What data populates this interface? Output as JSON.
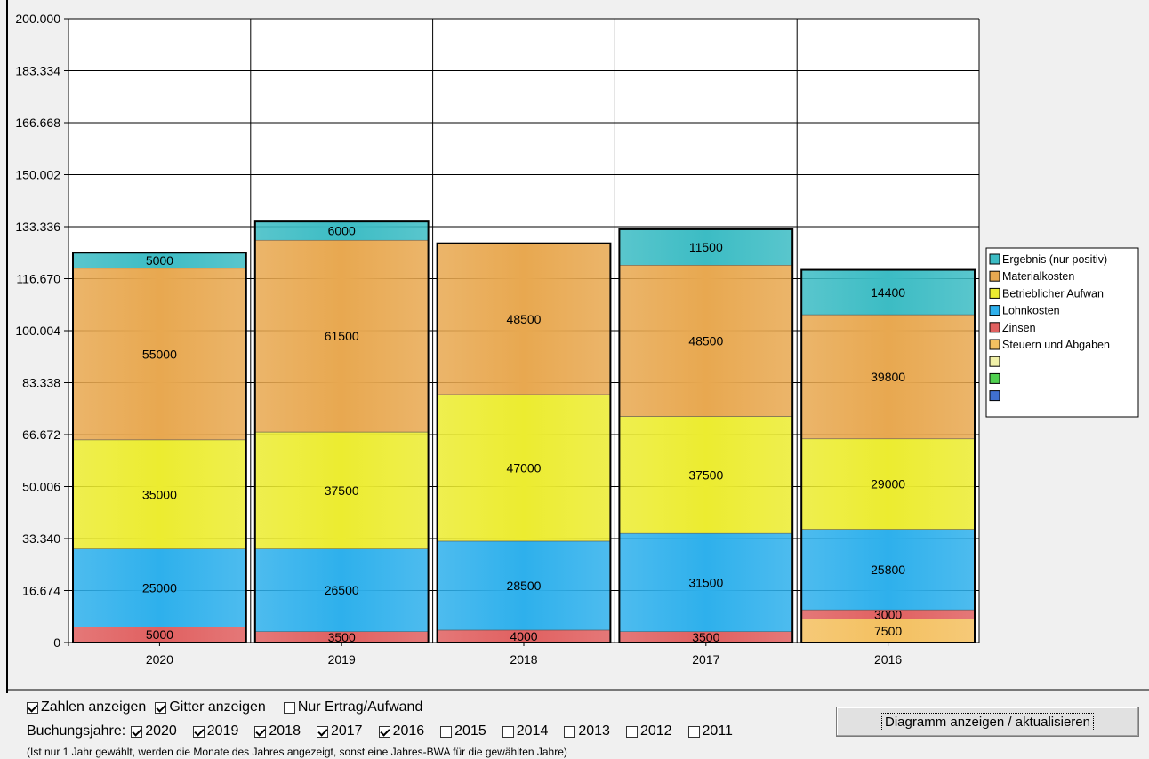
{
  "chart_data": {
    "type": "bar",
    "stacked": true,
    "categories": [
      "2020",
      "2019",
      "2018",
      "2017",
      "2016"
    ],
    "y_ticks": [
      "0",
      "16.674",
      "33.340",
      "50.006",
      "66.672",
      "83.338",
      "100.004",
      "116.670",
      "133.336",
      "150.002",
      "166.668",
      "183.334",
      "200.000"
    ],
    "ylim": [
      0,
      200000
    ],
    "grid": true,
    "legend_position": "right",
    "series": [
      {
        "name": "Steuern und Abgaben",
        "color": "#f4c060",
        "values": [
          0,
          0,
          0,
          0,
          7500
        ],
        "labels": [
          "",
          "",
          "",
          "",
          "7500"
        ]
      },
      {
        "name": "Zinsen",
        "color": "#e06060",
        "values": [
          5000,
          3500,
          4000,
          3500,
          3000
        ],
        "labels": [
          "5000",
          "3500",
          "4000",
          "3500",
          "3000"
        ]
      },
      {
        "name": "Lohnkosten",
        "color": "#2eb0ec",
        "values": [
          25000,
          26500,
          28500,
          31500,
          25800
        ],
        "labels": [
          "25000",
          "26500",
          "28500",
          "31500",
          "25800"
        ]
      },
      {
        "name": "Betrieblicher Aufwan",
        "color": "#ecec30",
        "values": [
          35000,
          37500,
          47000,
          37500,
          29000
        ],
        "labels": [
          "35000",
          "37500",
          "47000",
          "37500",
          "29000"
        ]
      },
      {
        "name": "Materialkosten",
        "color": "#e8a850",
        "values": [
          55000,
          61500,
          48500,
          48500,
          39800
        ],
        "labels": [
          "55000",
          "61500",
          "48500",
          "48500",
          "39800"
        ]
      },
      {
        "name": "Ergebnis (nur positiv)",
        "color": "#3cbcc4",
        "values": [
          5000,
          6000,
          0,
          11500,
          14400
        ],
        "labels": [
          "5000",
          "6000",
          "",
          "11500",
          "14400"
        ]
      }
    ],
    "legend": [
      {
        "name": "Ergebnis (nur positiv)",
        "color": "#3cbcc4"
      },
      {
        "name": "Materialkosten",
        "color": "#e8a850"
      },
      {
        "name": "Betrieblicher Aufwan",
        "color": "#ecec30"
      },
      {
        "name": "Lohnkosten",
        "color": "#2eb0ec"
      },
      {
        "name": "Zinsen",
        "color": "#e06060"
      },
      {
        "name": "Steuern und Abgaben",
        "color": "#f4c060"
      },
      {
        "name": "",
        "color": "#f0f0a8"
      },
      {
        "name": "",
        "color": "#50d050"
      },
      {
        "name": "",
        "color": "#4070d0"
      }
    ]
  },
  "controls": {
    "show_numbers": {
      "label": "Zahlen anzeigen",
      "checked": true
    },
    "show_grid": {
      "label": "Gitter anzeigen",
      "checked": true
    },
    "only_income": {
      "label": "Nur Ertrag/Aufwand",
      "checked": false
    },
    "years_label": "Buchungsjahre:",
    "years": [
      {
        "label": "2020",
        "checked": true
      },
      {
        "label": "2019",
        "checked": true
      },
      {
        "label": "2018",
        "checked": true
      },
      {
        "label": "2017",
        "checked": true
      },
      {
        "label": "2016",
        "checked": true
      },
      {
        "label": "2015",
        "checked": false
      },
      {
        "label": "2014",
        "checked": false
      },
      {
        "label": "2013",
        "checked": false
      },
      {
        "label": "2012",
        "checked": false
      },
      {
        "label": "2011",
        "checked": false
      }
    ],
    "hint": "(Ist nur 1 Jahr gewählt, werden die Monate des Jahres angezeigt, sonst eine Jahres-BWA für die gewählten Jahre)",
    "refresh_button": "Diagramm anzeigen / aktualisieren"
  }
}
